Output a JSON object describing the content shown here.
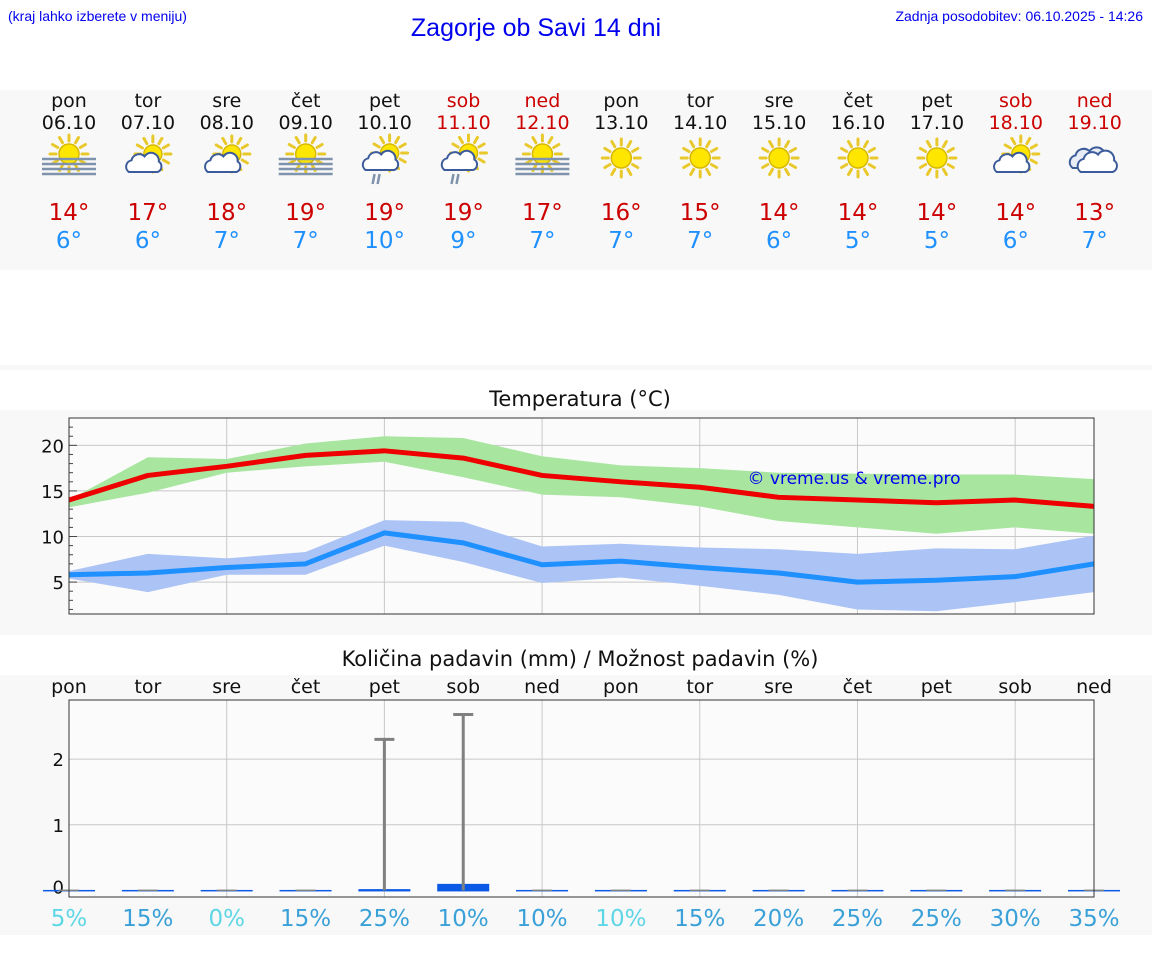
{
  "header": {
    "left_link": "(kraj lahko izberete v meniju)",
    "title": "Zagorje ob Savi 14 dni",
    "updated": "Zadnja posodobitev: 06.10.2025 - 14:26"
  },
  "colors": {
    "link": "#0000ee",
    "weekend": "#cc0000",
    "tmax": "#ee0000",
    "tmin": "#1e90ff",
    "tmax_band": "#a8e6a0",
    "tmin_band": "#abc3f5",
    "rain_bar": "#0a5ae6",
    "error_bar": "#808080"
  },
  "days": [
    {
      "dow": "pon",
      "date": "06.10",
      "weekend": false,
      "icon": "fog-sun-icon",
      "tmax": "14°",
      "tmin": "6°"
    },
    {
      "dow": "tor",
      "date": "07.10",
      "weekend": false,
      "icon": "partly-cloudy-icon",
      "tmax": "17°",
      "tmin": "6°"
    },
    {
      "dow": "sre",
      "date": "08.10",
      "weekend": false,
      "icon": "partly-cloudy-icon",
      "tmax": "18°",
      "tmin": "7°"
    },
    {
      "dow": "čet",
      "date": "09.10",
      "weekend": false,
      "icon": "fog-sun-icon",
      "tmax": "19°",
      "tmin": "7°"
    },
    {
      "dow": "pet",
      "date": "10.10",
      "weekend": false,
      "icon": "sun-cloud-rain-icon",
      "tmax": "19°",
      "tmin": "10°"
    },
    {
      "dow": "sob",
      "date": "11.10",
      "weekend": true,
      "icon": "sun-cloud-rain-icon",
      "tmax": "19°",
      "tmin": "9°"
    },
    {
      "dow": "ned",
      "date": "12.10",
      "weekend": true,
      "icon": "fog-sun-icon",
      "tmax": "17°",
      "tmin": "7°"
    },
    {
      "dow": "pon",
      "date": "13.10",
      "weekend": false,
      "icon": "sun-icon",
      "tmax": "16°",
      "tmin": "7°"
    },
    {
      "dow": "tor",
      "date": "14.10",
      "weekend": false,
      "icon": "sun-icon",
      "tmax": "15°",
      "tmin": "7°"
    },
    {
      "dow": "sre",
      "date": "15.10",
      "weekend": false,
      "icon": "sun-icon",
      "tmax": "14°",
      "tmin": "6°"
    },
    {
      "dow": "čet",
      "date": "16.10",
      "weekend": false,
      "icon": "sun-icon",
      "tmax": "14°",
      "tmin": "5°"
    },
    {
      "dow": "pet",
      "date": "17.10",
      "weekend": false,
      "icon": "sun-icon",
      "tmax": "14°",
      "tmin": "5°"
    },
    {
      "dow": "sob",
      "date": "18.10",
      "weekend": true,
      "icon": "partly-cloudy-icon",
      "tmax": "14°",
      "tmin": "6°"
    },
    {
      "dow": "ned",
      "date": "19.10",
      "weekend": true,
      "icon": "cloudy-icon",
      "tmax": "13°",
      "tmin": "7°"
    }
  ],
  "chart_data": [
    {
      "type": "line",
      "title": "Temperatura (°C)",
      "xlabel": "",
      "ylabel": "",
      "ylim": [
        1.5,
        23
      ],
      "yticks": [
        5,
        10,
        15,
        20
      ],
      "watermark": "© vreme.us & vreme.pro",
      "x": [
        0,
        1,
        2,
        3,
        4,
        5,
        6,
        7,
        8,
        9,
        10,
        11,
        12,
        13
      ],
      "series": [
        {
          "name": "max",
          "values": [
            14.0,
            16.7,
            17.7,
            18.9,
            19.4,
            18.6,
            16.7,
            16.0,
            15.4,
            14.3,
            14.0,
            13.7,
            14.0,
            13.3
          ],
          "band_low": [
            13.2,
            14.8,
            17.0,
            17.7,
            18.2,
            16.5,
            14.6,
            14.3,
            13.3,
            11.7,
            11.0,
            10.3,
            11.0,
            10.3
          ],
          "band_high": [
            14.0,
            18.7,
            18.5,
            20.2,
            21.0,
            20.8,
            18.8,
            17.8,
            17.5,
            17.0,
            16.9,
            16.8,
            16.8,
            16.3
          ]
        },
        {
          "name": "min",
          "values": [
            5.8,
            6.0,
            6.6,
            7.0,
            10.4,
            9.3,
            6.9,
            7.3,
            6.6,
            6.0,
            5.0,
            5.2,
            5.6,
            7.0
          ],
          "band_low": [
            5.4,
            3.9,
            5.8,
            5.8,
            9.0,
            7.2,
            4.9,
            5.5,
            4.6,
            3.6,
            2.0,
            1.8,
            2.8,
            3.9
          ],
          "band_high": [
            6.2,
            8.1,
            7.6,
            8.3,
            11.8,
            11.6,
            8.9,
            9.2,
            8.8,
            8.6,
            8.1,
            8.7,
            8.6,
            10.1
          ]
        }
      ]
    },
    {
      "type": "bar",
      "title": "Količina padavin (mm) / Možnost padavin (%)",
      "xlabel": "",
      "ylabel": "",
      "ylim": [
        -0.1,
        2.9
      ],
      "yticks": [
        0,
        1,
        2
      ],
      "categories": [
        "pon",
        "tor",
        "sre",
        "čet",
        "pet",
        "sob",
        "ned",
        "pon",
        "tor",
        "sre",
        "čet",
        "pet",
        "sob",
        "ned"
      ],
      "values": [
        0,
        0,
        0,
        0,
        0.02,
        0.1,
        0,
        0,
        0,
        0,
        0,
        0,
        0,
        0
      ],
      "error_max": [
        0,
        0,
        0,
        0,
        2.3,
        2.68,
        0,
        0,
        0,
        0,
        0,
        0,
        0,
        0
      ],
      "probability": [
        "5%",
        "15%",
        "0%",
        "15%",
        "25%",
        "10%",
        "10%",
        "10%",
        "15%",
        "20%",
        "25%",
        "25%",
        "30%",
        "35%"
      ],
      "probability_colors": [
        "#5fd6e6",
        "#3aa0d8",
        "#5fd6e6",
        "#3aa0d8",
        "#3aa0d8",
        "#3aa0d8",
        "#3aa0d8",
        "#5fd6e6",
        "#3aa0d8",
        "#3aa0d8",
        "#3aa0d8",
        "#3aa0d8",
        "#3aa0d8",
        "#3aa0d8"
      ]
    }
  ]
}
